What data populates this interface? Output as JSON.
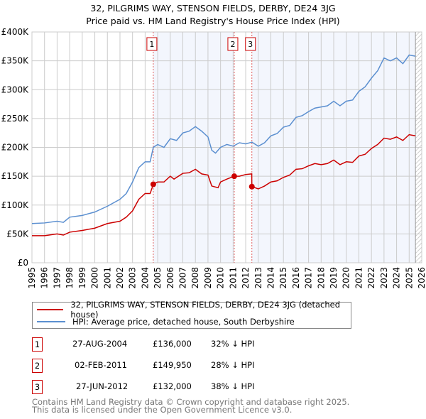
{
  "chart_data": {
    "type": "line",
    "title": "32, PILGRIMS WAY, STENSON FIELDS, DERBY, DE24 3JG",
    "subtitle": "Price paid vs. HM Land Registry's House Price Index (HPI)",
    "xlim": [
      1995,
      2026
    ],
    "ylim": [
      0,
      400000
    ],
    "x_ticks": [
      "1995",
      "1996",
      "1997",
      "1998",
      "1999",
      "2000",
      "2001",
      "2002",
      "2003",
      "2004",
      "2005",
      "2006",
      "2007",
      "2008",
      "2009",
      "2010",
      "2011",
      "2012",
      "2013",
      "2014",
      "2015",
      "2016",
      "2017",
      "2018",
      "2019",
      "2020",
      "2021",
      "2022",
      "2023",
      "2024",
      "2025",
      "2026"
    ],
    "y_ticks": [
      {
        "v": 0,
        "label": "£0"
      },
      {
        "v": 50000,
        "label": "£50K"
      },
      {
        "v": 100000,
        "label": "£100K"
      },
      {
        "v": 150000,
        "label": "£150K"
      },
      {
        "v": 200000,
        "label": "£200K"
      },
      {
        "v": 250000,
        "label": "£250K"
      },
      {
        "v": 300000,
        "label": "£300K"
      },
      {
        "v": 350000,
        "label": "£350K"
      },
      {
        "v": 400000,
        "label": "£400K"
      }
    ],
    "grid": true,
    "shaded_ranges": [
      [
        2004.65,
        2011.09
      ],
      [
        2012.49,
        2025.5
      ]
    ],
    "hatched_from": 2025.5,
    "series": [
      {
        "name": "32, PILGRIMS WAY, STENSON FIELDS, DERBY, DE24 3JG (detached house)",
        "color": "#cc0000",
        "x": [
          1995,
          1996,
          1997,
          1997.5,
          1998,
          1999,
          2000,
          2001,
          2002,
          2002.5,
          2003,
          2003.5,
          2004,
          2004.4,
          2004.65,
          2005,
          2005.5,
          2006,
          2006.3,
          2007,
          2007.5,
          2008,
          2008.5,
          2009,
          2009.3,
          2009.8,
          2010,
          2010.5,
          2011.09,
          2011.5,
          2012,
          2012.48,
          2012.49,
          2013,
          2013.5,
          2014,
          2014.5,
          2015,
          2015.5,
          2016,
          2016.5,
          2017,
          2017.5,
          2018,
          2018.5,
          2019,
          2019.5,
          2020,
          2020.5,
          2021,
          2021.5,
          2022,
          2022.5,
          2023,
          2023.5,
          2024,
          2024.5,
          2025,
          2025.5
        ],
        "y": [
          47000,
          47000,
          50000,
          48000,
          53000,
          56000,
          60000,
          68000,
          72000,
          79000,
          90000,
          110000,
          120000,
          120000,
          136000,
          140000,
          140000,
          150000,
          145000,
          155000,
          156000,
          162000,
          154000,
          152000,
          133000,
          130000,
          140000,
          145000,
          149950,
          150000,
          153000,
          154000,
          132000,
          128000,
          133000,
          140000,
          142000,
          148000,
          152000,
          162000,
          163000,
          168000,
          172000,
          170000,
          172000,
          178000,
          170000,
          175000,
          174000,
          185000,
          188000,
          198000,
          205000,
          216000,
          214000,
          218000,
          212000,
          222000,
          220000
        ]
      },
      {
        "name": "HPI: Average price, detached house, South Derbyshire",
        "color": "#5b8fd0",
        "x": [
          1995,
          1996,
          1997,
          1997.5,
          1998,
          1999,
          2000,
          2001,
          2002,
          2002.5,
          2003,
          2003.5,
          2004,
          2004.4,
          2004.65,
          2005,
          2005.5,
          2006,
          2006.5,
          2007,
          2007.5,
          2008,
          2008.5,
          2009,
          2009.3,
          2009.6,
          2010,
          2010.5,
          2011,
          2011.5,
          2012,
          2012.5,
          2013,
          2013.5,
          2014,
          2014.5,
          2015,
          2015.5,
          2016,
          2016.5,
          2017,
          2017.5,
          2018,
          2018.5,
          2019,
          2019.5,
          2020,
          2020.5,
          2021,
          2021.5,
          2022,
          2022.5,
          2023,
          2023.5,
          2024,
          2024.5,
          2025,
          2025.5
        ],
        "y": [
          68000,
          69000,
          72000,
          70000,
          79000,
          82000,
          88000,
          98000,
          110000,
          120000,
          140000,
          165000,
          175000,
          175000,
          200000,
          205000,
          200000,
          215000,
          212000,
          225000,
          228000,
          236000,
          228000,
          218000,
          195000,
          190000,
          200000,
          205000,
          202000,
          208000,
          206000,
          209000,
          202000,
          208000,
          220000,
          224000,
          235000,
          238000,
          252000,
          255000,
          262000,
          268000,
          270000,
          272000,
          280000,
          272000,
          280000,
          282000,
          297000,
          305000,
          320000,
          333000,
          355000,
          350000,
          355000,
          345000,
          360000,
          358000
        ]
      }
    ],
    "sales": [
      {
        "n": "1",
        "x": 2004.65,
        "y": 136000,
        "date": "27-AUG-2004",
        "price": "£136,000",
        "hpi": "32% ↓ HPI"
      },
      {
        "n": "2",
        "x": 2011.09,
        "y": 149950,
        "date": "02-FEB-2011",
        "price": "£149,950",
        "hpi": "28% ↓ HPI"
      },
      {
        "n": "3",
        "x": 2012.49,
        "y": 132000,
        "date": "27-JUN-2012",
        "price": "£132,000",
        "hpi": "38% ↓ HPI"
      }
    ]
  },
  "footer": [
    "Contains HM Land Registry data © Crown copyright and database right 2025.",
    "This data is licensed under the Open Government Licence v3.0."
  ]
}
